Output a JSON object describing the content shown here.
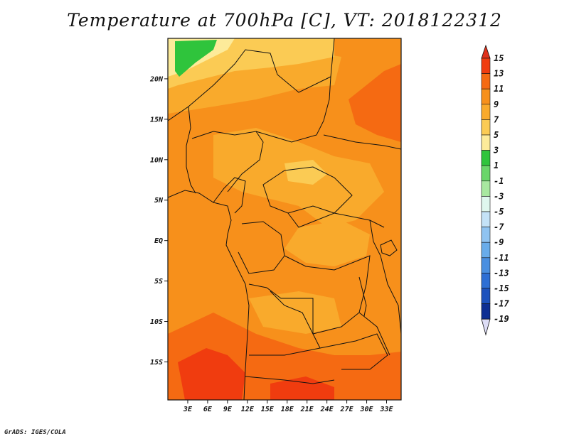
{
  "title": "Temperature at 700hPa [C], VT: 2018122312",
  "credit": "GrADS: IGES/COLA",
  "lat_ticks": [
    {
      "label": "20N",
      "value": 20
    },
    {
      "label": "15N",
      "value": 15
    },
    {
      "label": "10N",
      "value": 10
    },
    {
      "label": "5N",
      "value": 5
    },
    {
      "label": "EQ",
      "value": 0
    },
    {
      "label": "5S",
      "value": -5
    },
    {
      "label": "10S",
      "value": -10
    },
    {
      "label": "15S",
      "value": -15
    }
  ],
  "lon_ticks": [
    {
      "label": "3E",
      "value": 3
    },
    {
      "label": "6E",
      "value": 6
    },
    {
      "label": "9E",
      "value": 9
    },
    {
      "label": "12E",
      "value": 12
    },
    {
      "label": "15E",
      "value": 15
    },
    {
      "label": "18E",
      "value": 18
    },
    {
      "label": "21E",
      "value": 21
    },
    {
      "label": "24E",
      "value": 24
    },
    {
      "label": "27E",
      "value": 27
    },
    {
      "label": "30E",
      "value": 30
    },
    {
      "label": "33E",
      "value": 33
    }
  ],
  "colorbar": {
    "levels": [
      "15",
      "13",
      "11",
      "9",
      "7",
      "5",
      "3",
      "1",
      "-1",
      "-3",
      "-5",
      "-7",
      "-9",
      "-11",
      "-13",
      "-15",
      "-17",
      "-19"
    ],
    "colors": [
      "#f03c0f",
      "#f56a12",
      "#f7901b",
      "#f9aa2c",
      "#fbcb54",
      "#fdeb9a",
      "#2fc43c",
      "#6ad66a",
      "#a8e8a0",
      "#dff7ee",
      "#c4e2f7",
      "#8fc3f1",
      "#69acea",
      "#4a8fe0",
      "#2e6fd4",
      "#1d52bd",
      "#0e2f93",
      "#c8c8ec"
    ],
    "over_color": "#e0301a",
    "under_color": "#dcdcf5"
  }
}
